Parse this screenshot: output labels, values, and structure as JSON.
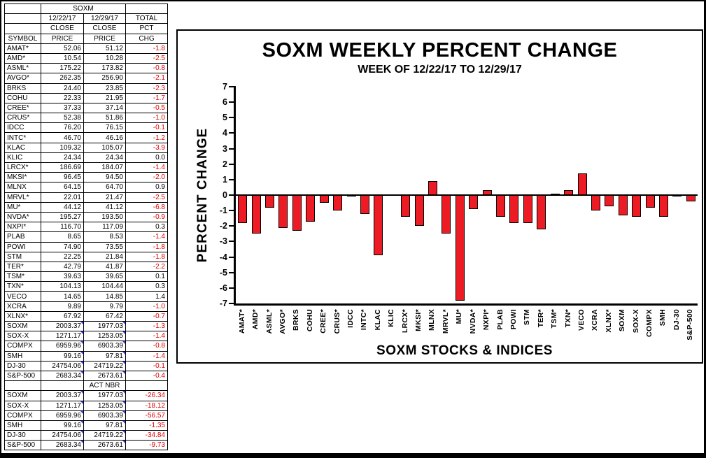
{
  "table": {
    "headers": {
      "title": "SOXM",
      "date1": "12/22/17",
      "date2": "12/29/17",
      "total": "TOTAL",
      "close": "CLOSE",
      "pct": "PCT",
      "symbol": "SYMBOL",
      "price": "PRICE",
      "chg": "CHG"
    },
    "act_label": "ACT NBR",
    "negative_color": "#e00000",
    "stock_rows": [
      [
        "AMAT*",
        "52.06",
        "51.12",
        "-1.8"
      ],
      [
        "AMD*",
        "10.54",
        "10.28",
        "-2.5"
      ],
      [
        "ASML*",
        "175.22",
        "173.82",
        "-0.8"
      ],
      [
        "AVGO*",
        "262.35",
        "256.90",
        "-2.1"
      ],
      [
        "BRKS",
        "24.40",
        "23.85",
        "-2.3"
      ],
      [
        "COHU",
        "22.33",
        "21.95",
        "-1.7"
      ],
      [
        "CREE*",
        "37.33",
        "37.14",
        "-0.5"
      ],
      [
        "CRUS*",
        "52.38",
        "51.86",
        "-1.0"
      ],
      [
        "IDCC",
        "76.20",
        "76.15",
        "-0.1"
      ],
      [
        "INTC*",
        "46.70",
        "46.16",
        "-1.2"
      ],
      [
        "KLAC",
        "109.32",
        "105.07",
        "-3.9"
      ],
      [
        "KLIC",
        "24.34",
        "24.34",
        "0.0"
      ],
      [
        "LRCX*",
        "186.69",
        "184.07",
        "-1.4"
      ],
      [
        "MKSI*",
        "96.45",
        "94.50",
        "-2.0"
      ],
      [
        "MLNX",
        "64.15",
        "64.70",
        "0.9"
      ],
      [
        "MRVL*",
        "22.01",
        "21.47",
        "-2.5"
      ],
      [
        "MU*",
        "44.12",
        "41.12",
        "-6.8"
      ],
      [
        "NVDA*",
        "195.27",
        "193.50",
        "-0.9"
      ],
      [
        "NXPI*",
        "116.70",
        "117.09",
        "0.3"
      ],
      [
        "PLAB",
        "8.65",
        "8.53",
        "-1.4"
      ],
      [
        "POWI",
        "74.90",
        "73.55",
        "-1.8"
      ],
      [
        "STM",
        "22.25",
        "21.84",
        "-1.8"
      ],
      [
        "TER*",
        "42.79",
        "41.87",
        "-2.2"
      ],
      [
        "TSM*",
        "39.63",
        "39.65",
        "0.1"
      ],
      [
        "TXN*",
        "104.13",
        "104.44",
        "0.3"
      ],
      [
        "VECO",
        "14.65",
        "14.85",
        "1.4"
      ],
      [
        "XCRA",
        "9.89",
        "9.79",
        "-1.0"
      ],
      [
        "XLNX*",
        "67.92",
        "67.42",
        "-0.7"
      ]
    ],
    "index_rows": [
      [
        "SOXM",
        "2003.37",
        "1977.03",
        "-1.3"
      ],
      [
        "SOX-X",
        "1271.17",
        "1253.05",
        "-1.4"
      ],
      [
        "COMPX",
        "6959.96",
        "6903.39",
        "-0.8"
      ],
      [
        "SMH",
        "99.16",
        "97.81",
        "-1.4"
      ],
      [
        "DJ-30",
        "24754.06",
        "24719.22",
        "-0.1"
      ],
      [
        "S&P-500",
        "2683.34",
        "2673.61",
        "-0.4"
      ]
    ],
    "act_rows": [
      [
        "SOXM",
        "2003.37",
        "1977.03",
        "-26.34"
      ],
      [
        "SOX-X",
        "1271.17",
        "1253.05",
        "-18.12"
      ],
      [
        "COMPX",
        "6959.96",
        "6903.39",
        "-56.57"
      ],
      [
        "SMH",
        "99.16",
        "97.81",
        "-1.35"
      ],
      [
        "DJ-30",
        "24754.06",
        "24719.22",
        "-34.84"
      ],
      [
        "S&P-500",
        "2683.34",
        "2673.61",
        "-9.73"
      ]
    ]
  },
  "chart_data": {
    "type": "bar",
    "title": "SOXM WEEKLY PERCENT CHANGE",
    "subtitle": "WEEK OF 12/22/17 TO 12/29/17",
    "xlabel": "SOXM STOCKS & INDICES",
    "ylabel": "PERCENT CHANGE",
    "ylim": [
      -7,
      7
    ],
    "yticks": [
      7,
      6,
      5,
      4,
      3,
      2,
      1,
      0,
      -1,
      -2,
      -3,
      -4,
      -5,
      -6,
      -7
    ],
    "grid": false,
    "legend": "none",
    "bar_color": "#ed1c24",
    "bar_border": "#000000",
    "categories": [
      "AMAT*",
      "AMD*",
      "ASML*",
      "AVGO*",
      "BRKS",
      "COHU",
      "CREE*",
      "CRUS*",
      "IDCC",
      "INTC*",
      "KLAC",
      "KLIC",
      "LRCX*",
      "MKSI*",
      "MLNX",
      "MRVL*",
      "MU*",
      "NVDA*",
      "NXPI*",
      "PLAB",
      "POWI",
      "STM",
      "TER*",
      "TSM*",
      "TXN*",
      "VECO",
      "XCRA",
      "XLNX*",
      "SOXM",
      "SOX-X",
      "COMPX",
      "SMH",
      "DJ-30",
      "S&P-500"
    ],
    "values": [
      -1.8,
      -2.5,
      -0.8,
      -2.1,
      -2.3,
      -1.7,
      -0.5,
      -1.0,
      -0.1,
      -1.2,
      -3.9,
      0,
      -1.4,
      -2.0,
      0.9,
      -2.5,
      -6.8,
      -0.9,
      0.3,
      -1.4,
      -1.8,
      -1.8,
      -2.2,
      0.1,
      0.3,
      1.4,
      -1.0,
      -0.7,
      -1.3,
      -1.4,
      -0.8,
      -1.4,
      -0.1,
      -0.4
    ]
  }
}
